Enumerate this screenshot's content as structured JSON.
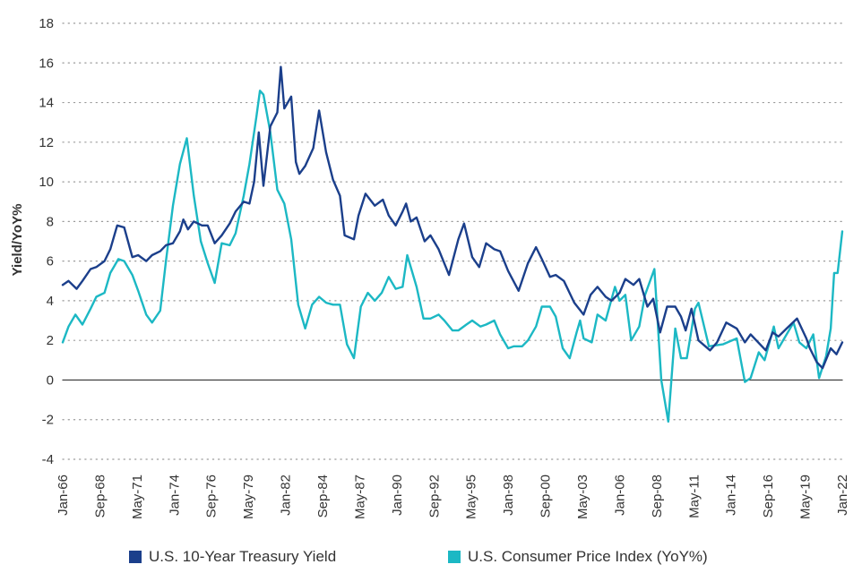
{
  "colors": {
    "treasury": "#1b3f8b",
    "cpi": "#1cb8c4",
    "zero_line": "#333333",
    "grid": "#9a9a9a"
  },
  "chart_data": {
    "type": "line",
    "title": "",
    "ylabel": "Yield/YoY%",
    "xlabel": "",
    "ylim": [
      -4,
      18
    ],
    "yticks": [
      "18",
      "16",
      "14",
      "12",
      "10",
      "8",
      "6",
      "4",
      "2",
      "0",
      "-2",
      "-4"
    ],
    "xlim": [
      "1966-01",
      "2022-01"
    ],
    "xtick_labels": [
      "Jan-66",
      "Sep-68",
      "May-71",
      "Jan-74",
      "Sep-76",
      "May-79",
      "Jan-82",
      "Sep-84",
      "May-87",
      "Jan-90",
      "Sep-92",
      "May-95",
      "Jan-98",
      "Sep-00",
      "May-03",
      "Jan-06",
      "Sep-08",
      "May-11",
      "Jan-14",
      "Sep-16",
      "May-19",
      "Jan-22"
    ],
    "grid": "horizontal dotted",
    "legend_position": "bottom",
    "series": [
      {
        "name": "U.S. 10-Year Treasury Yield",
        "color": "#1b3f8b",
        "points": [
          [
            "1966-01",
            4.8
          ],
          [
            "1966-06",
            5.0
          ],
          [
            "1967-01",
            4.6
          ],
          [
            "1967-06",
            5.0
          ],
          [
            "1968-01",
            5.6
          ],
          [
            "1968-06",
            5.7
          ],
          [
            "1969-01",
            6.0
          ],
          [
            "1969-06",
            6.6
          ],
          [
            "1969-12",
            7.8
          ],
          [
            "1970-06",
            7.7
          ],
          [
            "1971-01",
            6.2
          ],
          [
            "1971-06",
            6.3
          ],
          [
            "1972-01",
            6.0
          ],
          [
            "1972-06",
            6.3
          ],
          [
            "1973-01",
            6.5
          ],
          [
            "1973-06",
            6.8
          ],
          [
            "1973-12",
            6.9
          ],
          [
            "1974-06",
            7.5
          ],
          [
            "1974-09",
            8.1
          ],
          [
            "1975-01",
            7.6
          ],
          [
            "1975-06",
            8.0
          ],
          [
            "1976-01",
            7.8
          ],
          [
            "1976-06",
            7.8
          ],
          [
            "1976-12",
            6.9
          ],
          [
            "1977-06",
            7.3
          ],
          [
            "1978-01",
            7.9
          ],
          [
            "1978-06",
            8.5
          ],
          [
            "1979-01",
            9.0
          ],
          [
            "1979-06",
            8.9
          ],
          [
            "1979-10",
            10.0
          ],
          [
            "1980-02",
            12.5
          ],
          [
            "1980-06",
            9.8
          ],
          [
            "1980-12",
            12.8
          ],
          [
            "1981-06",
            13.5
          ],
          [
            "1981-09",
            15.8
          ],
          [
            "1981-12",
            13.7
          ],
          [
            "1982-06",
            14.3
          ],
          [
            "1982-10",
            11.0
          ],
          [
            "1983-01",
            10.4
          ],
          [
            "1983-06",
            10.8
          ],
          [
            "1984-01",
            11.7
          ],
          [
            "1984-06",
            13.6
          ],
          [
            "1984-12",
            11.5
          ],
          [
            "1985-06",
            10.1
          ],
          [
            "1985-12",
            9.3
          ],
          [
            "1986-04",
            7.3
          ],
          [
            "1986-12",
            7.1
          ],
          [
            "1987-04",
            8.3
          ],
          [
            "1987-10",
            9.4
          ],
          [
            "1988-06",
            8.8
          ],
          [
            "1989-01",
            9.1
          ],
          [
            "1989-06",
            8.3
          ],
          [
            "1989-12",
            7.8
          ],
          [
            "1990-06",
            8.5
          ],
          [
            "1990-09",
            8.9
          ],
          [
            "1991-01",
            8.0
          ],
          [
            "1991-06",
            8.2
          ],
          [
            "1992-01",
            7.0
          ],
          [
            "1992-06",
            7.3
          ],
          [
            "1993-01",
            6.6
          ],
          [
            "1993-10",
            5.3
          ],
          [
            "1994-06",
            7.1
          ],
          [
            "1994-11",
            7.9
          ],
          [
            "1995-06",
            6.2
          ],
          [
            "1995-12",
            5.7
          ],
          [
            "1996-06",
            6.9
          ],
          [
            "1997-01",
            6.6
          ],
          [
            "1997-06",
            6.5
          ],
          [
            "1998-01",
            5.5
          ],
          [
            "1998-10",
            4.5
          ],
          [
            "1999-06",
            5.9
          ],
          [
            "2000-01",
            6.7
          ],
          [
            "2000-06",
            6.1
          ],
          [
            "2001-01",
            5.2
          ],
          [
            "2001-06",
            5.3
          ],
          [
            "2002-01",
            5.0
          ],
          [
            "2002-10",
            3.9
          ],
          [
            "2003-06",
            3.3
          ],
          [
            "2003-12",
            4.3
          ],
          [
            "2004-06",
            4.7
          ],
          [
            "2005-01",
            4.2
          ],
          [
            "2005-06",
            4.0
          ],
          [
            "2006-01",
            4.4
          ],
          [
            "2006-06",
            5.1
          ],
          [
            "2007-01",
            4.8
          ],
          [
            "2007-06",
            5.1
          ],
          [
            "2008-01",
            3.7
          ],
          [
            "2008-06",
            4.1
          ],
          [
            "2008-12",
            2.4
          ],
          [
            "2009-06",
            3.7
          ],
          [
            "2010-01",
            3.7
          ],
          [
            "2010-06",
            3.2
          ],
          [
            "2010-10",
            2.5
          ],
          [
            "2011-03",
            3.6
          ],
          [
            "2011-09",
            2.0
          ],
          [
            "2012-07",
            1.5
          ],
          [
            "2013-01",
            1.9
          ],
          [
            "2013-09",
            2.9
          ],
          [
            "2014-06",
            2.6
          ],
          [
            "2015-01",
            1.9
          ],
          [
            "2015-06",
            2.3
          ],
          [
            "2016-07",
            1.5
          ],
          [
            "2017-01",
            2.4
          ],
          [
            "2017-06",
            2.2
          ],
          [
            "2018-01",
            2.6
          ],
          [
            "2018-10",
            3.1
          ],
          [
            "2019-06",
            2.1
          ],
          [
            "2019-09",
            1.6
          ],
          [
            "2020-03",
            0.9
          ],
          [
            "2020-08",
            0.6
          ],
          [
            "2021-03",
            1.6
          ],
          [
            "2021-08",
            1.3
          ],
          [
            "2022-01",
            1.9
          ]
        ]
      },
      {
        "name": "U.S. Consumer Price Index (YoY%)",
        "color": "#1cb8c4",
        "points": [
          [
            "1966-01",
            1.9
          ],
          [
            "1966-06",
            2.7
          ],
          [
            "1966-12",
            3.3
          ],
          [
            "1967-06",
            2.8
          ],
          [
            "1968-01",
            3.6
          ],
          [
            "1968-06",
            4.2
          ],
          [
            "1969-01",
            4.4
          ],
          [
            "1969-06",
            5.4
          ],
          [
            "1970-01",
            6.1
          ],
          [
            "1970-06",
            6.0
          ],
          [
            "1971-01",
            5.3
          ],
          [
            "1971-06",
            4.5
          ],
          [
            "1972-01",
            3.3
          ],
          [
            "1972-06",
            2.9
          ],
          [
            "1973-01",
            3.5
          ],
          [
            "1973-06",
            6.0
          ],
          [
            "1973-12",
            8.8
          ],
          [
            "1974-06",
            10.9
          ],
          [
            "1974-12",
            12.2
          ],
          [
            "1975-06",
            9.3
          ],
          [
            "1975-12",
            7.0
          ],
          [
            "1976-06",
            5.9
          ],
          [
            "1976-12",
            4.9
          ],
          [
            "1977-06",
            6.9
          ],
          [
            "1978-01",
            6.8
          ],
          [
            "1978-06",
            7.4
          ],
          [
            "1979-01",
            9.3
          ],
          [
            "1979-06",
            10.9
          ],
          [
            "1979-12",
            13.3
          ],
          [
            "1980-03",
            14.6
          ],
          [
            "1980-06",
            14.4
          ],
          [
            "1980-12",
            12.5
          ],
          [
            "1981-06",
            9.6
          ],
          [
            "1981-12",
            8.9
          ],
          [
            "1982-06",
            7.1
          ],
          [
            "1982-12",
            3.8
          ],
          [
            "1983-06",
            2.6
          ],
          [
            "1983-12",
            3.8
          ],
          [
            "1984-06",
            4.2
          ],
          [
            "1984-12",
            3.9
          ],
          [
            "1985-06",
            3.8
          ],
          [
            "1985-12",
            3.8
          ],
          [
            "1986-06",
            1.8
          ],
          [
            "1986-12",
            1.1
          ],
          [
            "1987-06",
            3.7
          ],
          [
            "1987-12",
            4.4
          ],
          [
            "1988-06",
            4.0
          ],
          [
            "1988-12",
            4.4
          ],
          [
            "1989-06",
            5.2
          ],
          [
            "1989-12",
            4.6
          ],
          [
            "1990-06",
            4.7
          ],
          [
            "1990-10",
            6.3
          ],
          [
            "1991-06",
            4.7
          ],
          [
            "1991-12",
            3.1
          ],
          [
            "1992-06",
            3.1
          ],
          [
            "1993-01",
            3.3
          ],
          [
            "1993-06",
            3.0
          ],
          [
            "1994-01",
            2.5
          ],
          [
            "1994-06",
            2.5
          ],
          [
            "1995-01",
            2.8
          ],
          [
            "1995-06",
            3.0
          ],
          [
            "1996-01",
            2.7
          ],
          [
            "1996-06",
            2.8
          ],
          [
            "1997-01",
            3.0
          ],
          [
            "1997-06",
            2.3
          ],
          [
            "1998-01",
            1.6
          ],
          [
            "1998-06",
            1.7
          ],
          [
            "1999-01",
            1.7
          ],
          [
            "1999-06",
            2.0
          ],
          [
            "2000-01",
            2.7
          ],
          [
            "2000-06",
            3.7
          ],
          [
            "2001-01",
            3.7
          ],
          [
            "2001-06",
            3.2
          ],
          [
            "2001-12",
            1.6
          ],
          [
            "2002-06",
            1.1
          ],
          [
            "2002-12",
            2.4
          ],
          [
            "2003-03",
            3.0
          ],
          [
            "2003-06",
            2.1
          ],
          [
            "2004-01",
            1.9
          ],
          [
            "2004-06",
            3.3
          ],
          [
            "2005-01",
            3.0
          ],
          [
            "2005-09",
            4.7
          ],
          [
            "2006-01",
            4.0
          ],
          [
            "2006-06",
            4.3
          ],
          [
            "2006-11",
            2.0
          ],
          [
            "2007-06",
            2.7
          ],
          [
            "2007-11",
            4.3
          ],
          [
            "2008-07",
            5.6
          ],
          [
            "2009-01",
            0.0
          ],
          [
            "2009-07",
            -2.1
          ],
          [
            "2010-01",
            2.6
          ],
          [
            "2010-06",
            1.1
          ],
          [
            "2010-11",
            1.1
          ],
          [
            "2011-06",
            3.6
          ],
          [
            "2011-09",
            3.9
          ],
          [
            "2012-06",
            1.7
          ],
          [
            "2013-06",
            1.8
          ],
          [
            "2014-06",
            2.1
          ],
          [
            "2015-01",
            -0.1
          ],
          [
            "2015-06",
            0.1
          ],
          [
            "2016-01",
            1.4
          ],
          [
            "2016-06",
            1.0
          ],
          [
            "2017-02",
            2.7
          ],
          [
            "2017-06",
            1.6
          ],
          [
            "2018-07",
            2.9
          ],
          [
            "2018-12",
            1.9
          ],
          [
            "2019-06",
            1.6
          ],
          [
            "2019-12",
            2.3
          ],
          [
            "2020-05",
            0.1
          ],
          [
            "2020-11",
            1.2
          ],
          [
            "2021-03",
            2.6
          ],
          [
            "2021-06",
            5.4
          ],
          [
            "2021-09",
            5.4
          ],
          [
            "2022-01",
            7.5
          ]
        ]
      }
    ]
  },
  "legend": {
    "items": [
      {
        "label": "U.S. 10-Year Treasury Yield",
        "color": "#1b3f8b"
      },
      {
        "label": "U.S. Consumer Price Index (YoY%)",
        "color": "#1cb8c4"
      }
    ]
  }
}
